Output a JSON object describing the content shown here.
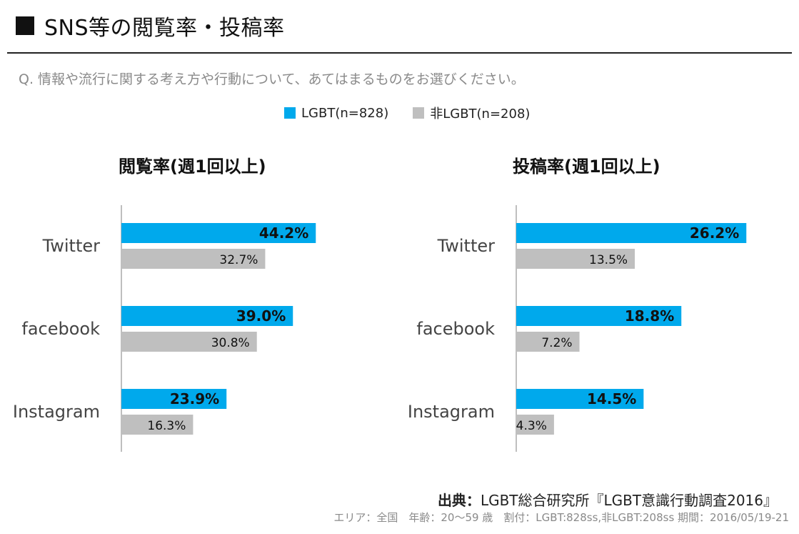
{
  "header": {
    "title": "SNS等の閲覧率・投稿率",
    "question": "Q. 情報や流行に関する考え方や行動について、あてはまるものをお選びください。"
  },
  "legend": {
    "lgbt": "LGBT(n=828)",
    "non_lgbt": "非LGBT(n=208)"
  },
  "colors": {
    "lgbt": "#00A9EC",
    "non_lgbt": "#BFBFBF"
  },
  "chart_data": [
    {
      "type": "bar",
      "orientation": "horizontal",
      "title": "閲覧率(週1回以上)",
      "categories": [
        "Twitter",
        "facebook",
        "Instagram"
      ],
      "series": [
        {
          "name": "LGBT(n=828)",
          "values": [
            44.2,
            39.0,
            23.9
          ],
          "labels": [
            "44.2%",
            "39.0%",
            "23.9%"
          ]
        },
        {
          "name": "非LGBT(n=208)",
          "values": [
            32.7,
            30.8,
            16.3
          ],
          "labels": [
            "32.7%",
            "30.8%",
            "16.3%"
          ]
        }
      ]
    },
    {
      "type": "bar",
      "orientation": "horizontal",
      "title": "投稿率(週1回以上)",
      "categories": [
        "Twitter",
        "facebook",
        "Instagram"
      ],
      "series": [
        {
          "name": "LGBT(n=828)",
          "values": [
            26.2,
            18.8,
            14.5
          ],
          "labels": [
            "26.2%",
            "18.8%",
            "14.5%"
          ]
        },
        {
          "name": "非LGBT(n=208)",
          "values": [
            13.5,
            7.2,
            4.3
          ],
          "labels": [
            "13.5%",
            "7.2%",
            "4.3%"
          ]
        }
      ]
    }
  ],
  "footer": {
    "source_label": "出典：",
    "source_text": "LGBT総合研究所『LGBT意識行動調査2016』",
    "details": "エリア：全国　年齢：20〜59 歳　割付：LGBT:828ss,非LGBT:208ss 期間：2016/05/19-21"
  }
}
